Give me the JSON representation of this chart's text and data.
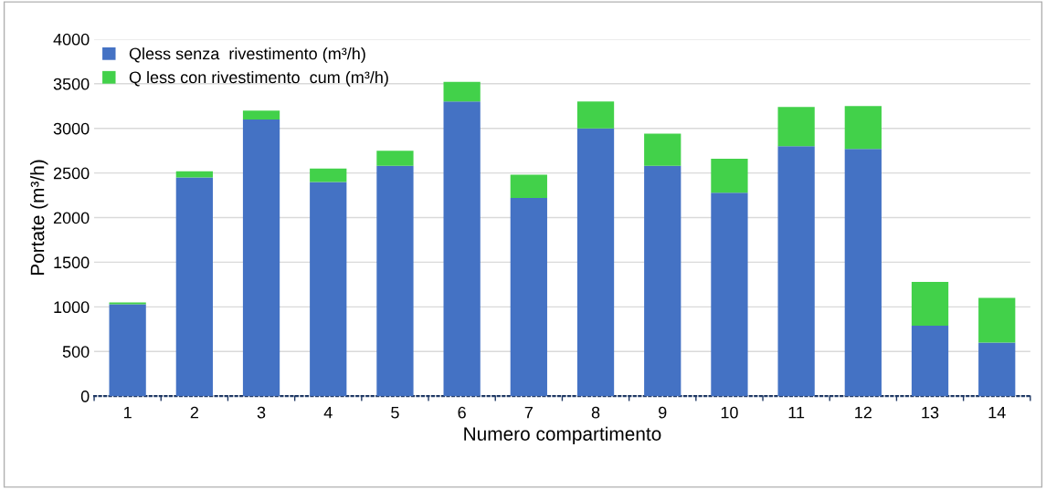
{
  "chart_data": {
    "type": "bar",
    "stacked": true,
    "xlabel": "Numero compartimento",
    "ylabel": "Portate (m³/h)",
    "categories": [
      "1",
      "2",
      "3",
      "4",
      "5",
      "6",
      "7",
      "8",
      "9",
      "10",
      "11",
      "12",
      "13",
      "14"
    ],
    "series": [
      {
        "name": "Qless senza  rivestimento (m³/h)",
        "color": "#4472c4",
        "values": [
          1030,
          2450,
          3100,
          2400,
          2580,
          3300,
          2220,
          3000,
          2580,
          2280,
          2800,
          2770,
          790,
          600
        ]
      },
      {
        "name": "Q less con rivestimento  cum (m³/h)",
        "color": "#42d14a",
        "values": [
          20,
          70,
          100,
          150,
          170,
          220,
          260,
          300,
          360,
          380,
          440,
          480,
          490,
          500
        ]
      }
    ],
    "ylim": [
      0,
      4000
    ],
    "yticks": [
      0,
      500,
      1000,
      1500,
      2000,
      2500,
      3000,
      3500,
      4000
    ],
    "grid": "y",
    "legend": "top left"
  }
}
